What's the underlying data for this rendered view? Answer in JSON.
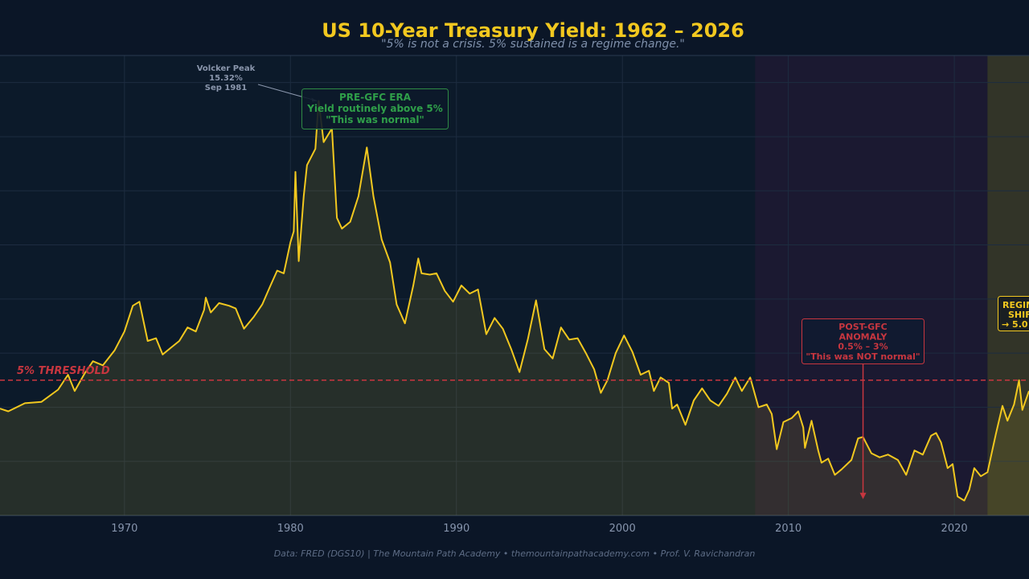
{
  "chart_data": {
    "type": "line",
    "title": "US 10-Year Treasury Yield: 1962 – 2026",
    "subtitle": "\"5% is not a crisis.  5% sustained is a regime change.\"",
    "xlabel": "",
    "ylabel": "",
    "xlim": [
      1962.5,
      2024.5
    ],
    "ylim": [
      0,
      17
    ],
    "x_ticks": [
      "1970",
      "1980",
      "1990",
      "2000",
      "2010",
      "2020"
    ],
    "grid": true,
    "threshold": {
      "value": 5.0,
      "label": "5% THRESHOLD"
    },
    "regions": [
      {
        "start": 2008.0,
        "end": 2022.0,
        "color": "#1f1a33"
      },
      {
        "start": 2022.0,
        "end": 2024.5,
        "color": "#3a3a28"
      }
    ],
    "annotations": {
      "volcker": {
        "lines": [
          "Volcker Peak",
          "15.32%",
          "Sep 1981"
        ],
        "x": 1981.7,
        "y": 15.32
      },
      "pre_gfc": {
        "lines": [
          "PRE-GFC ERA",
          "Yield routinely above 5%",
          "\"This was normal\""
        ]
      },
      "post_gfc": {
        "lines": [
          "POST-GFC",
          "ANOMALY",
          "0.5% – 3%",
          "\"This was NOT normal\""
        ],
        "x": 2014.5,
        "y": 0.6
      },
      "regime": {
        "lines": [
          "REGIME",
          "SHIFT",
          "→ 5.0"
        ]
      }
    },
    "footer": "Data: FRED (DGS10) | The Mountain Path Academy  •  themountainpathacademy.com  •  Prof. V. Ravichandran",
    "series": [
      {
        "color": "#f2c81f",
        "points": [
          [
            1962.5,
            3.95
          ],
          [
            1963,
            3.85
          ],
          [
            1964,
            4.15
          ],
          [
            1965,
            4.2
          ],
          [
            1966,
            4.65
          ],
          [
            1966.6,
            5.2
          ],
          [
            1967.0,
            4.6
          ],
          [
            1967.6,
            5.25
          ],
          [
            1968.1,
            5.7
          ],
          [
            1968.7,
            5.55
          ],
          [
            1969.4,
            6.1
          ],
          [
            1970.0,
            6.8
          ],
          [
            1970.5,
            7.75
          ],
          [
            1970.9,
            7.9
          ],
          [
            1971.4,
            6.45
          ],
          [
            1971.9,
            6.55
          ],
          [
            1972.3,
            5.95
          ],
          [
            1972.8,
            6.2
          ],
          [
            1973.3,
            6.45
          ],
          [
            1973.8,
            6.95
          ],
          [
            1974.3,
            6.8
          ],
          [
            1974.8,
            7.6
          ],
          [
            1974.9,
            8.05
          ],
          [
            1975.2,
            7.5
          ],
          [
            1975.7,
            7.85
          ],
          [
            1976.3,
            7.75
          ],
          [
            1976.7,
            7.65
          ],
          [
            1977.2,
            6.9
          ],
          [
            1977.8,
            7.35
          ],
          [
            1978.3,
            7.8
          ],
          [
            1978.8,
            8.5
          ],
          [
            1979.2,
            9.05
          ],
          [
            1979.6,
            8.95
          ],
          [
            1980.0,
            10.1
          ],
          [
            1980.2,
            10.5
          ],
          [
            1980.3,
            12.7
          ],
          [
            1980.5,
            9.4
          ],
          [
            1980.8,
            11.8
          ],
          [
            1981.0,
            12.95
          ],
          [
            1981.5,
            13.55
          ],
          [
            1981.7,
            15.32
          ],
          [
            1982.0,
            13.8
          ],
          [
            1982.5,
            14.3
          ],
          [
            1982.8,
            11.0
          ],
          [
            1983.1,
            10.6
          ],
          [
            1983.6,
            10.85
          ],
          [
            1984.1,
            11.8
          ],
          [
            1984.6,
            13.6
          ],
          [
            1985.0,
            11.8
          ],
          [
            1985.5,
            10.2
          ],
          [
            1986.0,
            9.35
          ],
          [
            1986.4,
            7.8
          ],
          [
            1986.9,
            7.1
          ],
          [
            1987.4,
            8.5
          ],
          [
            1987.7,
            9.5
          ],
          [
            1987.9,
            8.95
          ],
          [
            1988.4,
            8.9
          ],
          [
            1988.8,
            8.95
          ],
          [
            1989.3,
            8.3
          ],
          [
            1989.8,
            7.9
          ],
          [
            1990.3,
            8.5
          ],
          [
            1990.8,
            8.2
          ],
          [
            1991.3,
            8.35
          ],
          [
            1991.8,
            6.7
          ],
          [
            1992.3,
            7.3
          ],
          [
            1992.8,
            6.9
          ],
          [
            1993.3,
            6.15
          ],
          [
            1993.8,
            5.3
          ],
          [
            1994.3,
            6.5
          ],
          [
            1994.8,
            7.95
          ],
          [
            1995.3,
            6.15
          ],
          [
            1995.8,
            5.8
          ],
          [
            1996.3,
            6.95
          ],
          [
            1996.8,
            6.5
          ],
          [
            1997.3,
            6.55
          ],
          [
            1997.8,
            6.0
          ],
          [
            1998.3,
            5.4
          ],
          [
            1998.7,
            4.53
          ],
          [
            1999.1,
            5.0
          ],
          [
            1999.6,
            6.0
          ],
          [
            2000.1,
            6.65
          ],
          [
            2000.6,
            6.05
          ],
          [
            2001.1,
            5.2
          ],
          [
            2001.6,
            5.35
          ],
          [
            2001.9,
            4.6
          ],
          [
            2002.3,
            5.1
          ],
          [
            2002.8,
            4.9
          ],
          [
            2003.0,
            3.95
          ],
          [
            2003.3,
            4.1
          ],
          [
            2003.8,
            3.35
          ],
          [
            2004.3,
            4.25
          ],
          [
            2004.8,
            4.7
          ],
          [
            2005.3,
            4.25
          ],
          [
            2005.8,
            4.05
          ],
          [
            2006.3,
            4.5
          ],
          [
            2006.8,
            5.1
          ],
          [
            2007.2,
            4.6
          ],
          [
            2007.7,
            5.1
          ],
          [
            2008.2,
            4.0
          ],
          [
            2008.7,
            4.1
          ],
          [
            2009.0,
            3.75
          ],
          [
            2009.3,
            2.45
          ],
          [
            2009.7,
            3.45
          ],
          [
            2010.2,
            3.6
          ],
          [
            2010.6,
            3.85
          ],
          [
            2010.9,
            3.25
          ],
          [
            2011.0,
            2.5
          ],
          [
            2011.4,
            3.5
          ],
          [
            2011.8,
            2.4
          ],
          [
            2012.0,
            1.95
          ],
          [
            2012.4,
            2.1
          ],
          [
            2012.8,
            1.5
          ],
          [
            2013.2,
            1.7
          ],
          [
            2013.8,
            2.05
          ],
          [
            2014.2,
            2.85
          ],
          [
            2014.5,
            2.9
          ],
          [
            2015.0,
            2.3
          ],
          [
            2015.5,
            2.15
          ],
          [
            2016.0,
            2.25
          ],
          [
            2016.6,
            2.05
          ],
          [
            2017.1,
            1.5
          ],
          [
            2017.6,
            2.4
          ],
          [
            2018.1,
            2.25
          ],
          [
            2018.6,
            2.95
          ],
          [
            2018.9,
            3.05
          ],
          [
            2019.2,
            2.7
          ],
          [
            2019.6,
            1.75
          ],
          [
            2019.9,
            1.9
          ],
          [
            2020.2,
            0.7
          ],
          [
            2020.6,
            0.55
          ],
          [
            2020.9,
            0.95
          ],
          [
            2021.2,
            1.75
          ],
          [
            2021.6,
            1.45
          ],
          [
            2022.0,
            1.6
          ],
          [
            2022.5,
            3.0
          ],
          [
            2022.9,
            4.05
          ],
          [
            2023.2,
            3.5
          ],
          [
            2023.6,
            4.1
          ],
          [
            2023.9,
            5.0
          ],
          [
            2024.1,
            3.9
          ],
          [
            2024.5,
            4.6
          ]
        ]
      }
    ]
  }
}
